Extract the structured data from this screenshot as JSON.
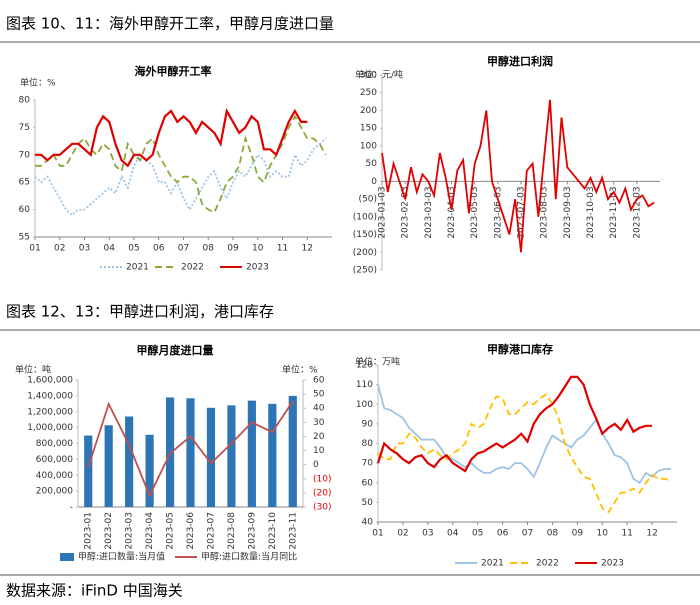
{
  "captions": [
    "图表 10、11：海外甲醇开工率，甲醇月度进口量",
    "图表 12、13：甲醇进口利润，港口库存"
  ],
  "source": "数据来源：iFinD  中国海关",
  "chart_data": [
    {
      "type": "line",
      "title": "海外甲醇开工率",
      "ylabel": "单位：%",
      "ylim": [
        55,
        80
      ],
      "yticks": [
        55,
        60,
        65,
        70,
        75,
        80
      ],
      "xlim": [
        1,
        13
      ],
      "xticks": [
        {
          "value": 1,
          "label": "01"
        },
        {
          "value": 2,
          "label": "02"
        },
        {
          "value": 3,
          "label": "03"
        },
        {
          "value": 4,
          "label": "04"
        },
        {
          "value": 5,
          "label": "05"
        },
        {
          "value": 6,
          "label": "06"
        },
        {
          "value": 7,
          "label": "07"
        },
        {
          "value": 8,
          "label": "08"
        },
        {
          "value": 9,
          "label": "09"
        },
        {
          "value": 10,
          "label": "10"
        },
        {
          "value": 11,
          "label": "11"
        },
        {
          "value": 12,
          "label": "12"
        }
      ],
      "x": [
        1,
        1.25,
        1.5,
        1.75,
        2,
        2.25,
        2.5,
        2.75,
        3,
        3.25,
        3.5,
        3.75,
        4,
        4.25,
        4.5,
        4.75,
        5,
        5.25,
        5.5,
        5.75,
        6,
        6.25,
        6.5,
        6.75,
        7,
        7.25,
        7.5,
        7.75,
        8,
        8.25,
        8.5,
        8.75,
        9,
        9.25,
        9.5,
        9.75,
        10,
        10.25,
        10.5,
        10.75,
        11,
        11.25,
        11.5,
        11.75,
        12,
        12.25,
        12.5,
        12.75
      ],
      "series": [
        {
          "name": "2021",
          "color": "#9dc3e6",
          "style": "dotted",
          "values": [
            66,
            65,
            66,
            64,
            62,
            60,
            59,
            60,
            60,
            61,
            62,
            63,
            64,
            63,
            66,
            64,
            68,
            70,
            69,
            68,
            65,
            65,
            63,
            65,
            62,
            60,
            62,
            64,
            66,
            67,
            64,
            62,
            65,
            67,
            66,
            68,
            70,
            69,
            66,
            67,
            66,
            66,
            70,
            68,
            69,
            71,
            72,
            73
          ]
        },
        {
          "name": "2022",
          "color": "#8aa83a",
          "style": "dashed",
          "values": [
            68,
            68,
            69,
            70,
            68,
            68,
            70,
            72,
            73,
            71,
            70,
            72,
            71,
            68,
            67,
            72,
            70,
            69,
            72,
            73,
            70,
            68,
            66,
            65,
            66,
            66,
            65,
            61,
            60,
            59.5,
            62,
            65,
            66,
            68,
            73,
            70,
            66,
            65,
            68,
            70,
            72,
            75,
            77,
            75,
            73,
            73,
            72,
            70
          ]
        },
        {
          "name": "2023",
          "color": "#e00000",
          "style": "solid",
          "values": [
            70,
            70,
            69,
            70,
            70,
            71,
            72,
            72,
            71,
            70,
            75,
            77,
            76,
            72,
            69,
            68,
            70,
            70,
            69,
            70,
            74,
            77,
            78,
            76,
            77,
            76,
            74,
            76,
            75,
            74,
            72,
            78,
            76,
            74,
            75,
            77,
            76,
            71,
            71,
            70,
            73,
            76,
            78,
            76,
            76,
            null,
            null,
            null
          ]
        }
      ]
    },
    {
      "type": "line",
      "title": "甲醇进口利润",
      "ylabel": "单位：元/吨",
      "ylim": [
        -250,
        300
      ],
      "yticks": [
        {
          "value": -250,
          "label": "(250)"
        },
        {
          "value": -200,
          "label": "(200)"
        },
        {
          "value": -150,
          "label": "(150)"
        },
        {
          "value": -100,
          "label": "(100)"
        },
        {
          "value": -50,
          "label": "(50)"
        },
        0,
        50,
        100,
        150,
        200,
        250,
        300
      ],
      "xlim": [
        0,
        12
      ],
      "xticks": [
        {
          "value": 0,
          "label": "2023-01-03"
        },
        {
          "value": 1,
          "label": "2023-02-03"
        },
        {
          "value": 2,
          "label": "2023-03-03"
        },
        {
          "value": 3,
          "label": "2023-04-03"
        },
        {
          "value": 4,
          "label": "2023-05-03"
        },
        {
          "value": 5,
          "label": "2023-06-03"
        },
        {
          "value": 6,
          "label": "2023-07-03"
        },
        {
          "value": 7,
          "label": "2023-08-03"
        },
        {
          "value": 8,
          "label": "2023-09-03"
        },
        {
          "value": 9,
          "label": "2023-10-03"
        },
        {
          "value": 10,
          "label": "2023-11-03"
        },
        {
          "value": 11,
          "label": "2023-12-03"
        }
      ],
      "x": [
        0,
        0.25,
        0.5,
        0.75,
        1,
        1.25,
        1.5,
        1.75,
        2,
        2.25,
        2.5,
        2.75,
        3,
        3.25,
        3.5,
        3.75,
        4,
        4.25,
        4.5,
        4.75,
        5,
        5.25,
        5.5,
        5.75,
        6,
        6.25,
        6.5,
        6.75,
        7,
        7.25,
        7.5,
        7.75,
        8,
        8.25,
        8.5,
        8.75,
        9,
        9.25,
        9.5,
        9.75,
        10,
        10.25,
        10.5,
        10.75,
        11,
        11.25,
        11.5,
        11.75
      ],
      "color": "#e00000",
      "values": [
        80,
        -30,
        50,
        0,
        -50,
        40,
        -30,
        20,
        0,
        -40,
        80,
        10,
        -80,
        30,
        60,
        -90,
        50,
        100,
        200,
        0,
        -50,
        -100,
        -150,
        -50,
        -200,
        30,
        50,
        -100,
        70,
        230,
        -50,
        180,
        40,
        20,
        0,
        -20,
        10,
        -30,
        10,
        -50,
        -30,
        -60,
        -20,
        -80,
        -50,
        -40,
        -70,
        -60
      ]
    },
    {
      "type": "bar",
      "title": "甲醇月度进口量",
      "ylabel": "单位：吨",
      "y2label": "单位：%",
      "categories": [
        "2023-01",
        "2023-02",
        "2023-03",
        "2023-04",
        "2023-05",
        "2023-06",
        "2023-07",
        "2023-08",
        "2023-09",
        "2023-10",
        "2023-11"
      ],
      "ylim": [
        0,
        1600000
      ],
      "yticks": [
        {
          "value": 0,
          "label": "-"
        },
        {
          "value": 200000,
          "label": "200,000"
        },
        {
          "value": 400000,
          "label": "400,000"
        },
        {
          "value": 600000,
          "label": "600,000"
        },
        {
          "value": 800000,
          "label": "800,000"
        },
        {
          "value": 1000000,
          "label": "1,000,000"
        },
        {
          "value": 1200000,
          "label": "1,200,000"
        },
        {
          "value": 1400000,
          "label": "1,400,000"
        },
        {
          "value": 1600000,
          "label": "1,600,000"
        }
      ],
      "y2lim": [
        -30,
        60
      ],
      "y2ticks": [
        {
          "value": -30,
          "label": "(30)"
        },
        {
          "value": -20,
          "label": "(20)"
        },
        {
          "value": -10,
          "label": "(10)"
        },
        0,
        10,
        20,
        30,
        40,
        50,
        60
      ],
      "series": [
        {
          "name": "甲醇:进口数量:当月值",
          "type": "bar",
          "color": "#2e75b6",
          "values": [
            900000,
            1030000,
            1140000,
            910000,
            1380000,
            1370000,
            1250000,
            1280000,
            1340000,
            1300000,
            1400000
          ]
        },
        {
          "name": "甲醇:进口数量:当月同比",
          "type": "line",
          "axis": "y2",
          "color": "#c0504d",
          "style": "solid",
          "values": [
            -2,
            43,
            14,
            -22,
            8,
            20,
            1,
            15,
            30,
            23,
            45
          ]
        }
      ]
    },
    {
      "type": "line",
      "title": "甲醇港口库存",
      "ylabel": "单位：万吨",
      "ylim": [
        40,
        120
      ],
      "yticks": [
        40,
        50,
        60,
        70,
        80,
        90,
        100,
        110,
        120
      ],
      "xlim": [
        1,
        13
      ],
      "xticks": [
        {
          "value": 1,
          "label": "01"
        },
        {
          "value": 2,
          "label": "02"
        },
        {
          "value": 3,
          "label": "03"
        },
        {
          "value": 4,
          "label": "04"
        },
        {
          "value": 5,
          "label": "05"
        },
        {
          "value": 6,
          "label": "06"
        },
        {
          "value": 7,
          "label": "07"
        },
        {
          "value": 8,
          "label": "08"
        },
        {
          "value": 9,
          "label": "09"
        },
        {
          "value": 10,
          "label": "10"
        },
        {
          "value": 11,
          "label": "11"
        },
        {
          "value": 12,
          "label": "12"
        }
      ],
      "x": [
        1,
        1.25,
        1.5,
        1.75,
        2,
        2.25,
        2.5,
        2.75,
        3,
        3.25,
        3.5,
        3.75,
        4,
        4.25,
        4.5,
        4.75,
        5,
        5.25,
        5.5,
        5.75,
        6,
        6.25,
        6.5,
        6.75,
        7,
        7.25,
        7.5,
        7.75,
        8,
        8.25,
        8.5,
        8.75,
        9,
        9.25,
        9.5,
        9.75,
        10,
        10.25,
        10.5,
        10.75,
        11,
        11.25,
        11.5,
        11.75,
        12,
        12.25,
        12.5,
        12.75
      ],
      "series": [
        {
          "name": "2021",
          "color": "#9dc3e6",
          "style": "solid",
          "values": [
            110,
            98,
            97,
            95,
            93,
            88,
            85,
            82,
            82,
            82,
            78,
            73,
            72,
            70,
            68,
            70,
            67,
            65,
            65,
            67,
            68,
            67,
            70,
            70,
            67,
            63,
            70,
            78,
            84,
            82,
            80,
            78,
            82,
            84,
            88,
            92,
            85,
            80,
            74,
            73,
            70,
            62,
            60,
            65,
            63,
            66,
            67,
            67
          ]
        },
        {
          "name": "2022",
          "color": "#ffc000",
          "style": "dashed",
          "values": [
            75,
            72,
            72,
            80,
            80,
            85,
            83,
            78,
            75,
            77,
            74,
            72,
            75,
            77,
            80,
            90,
            88,
            90,
            98,
            104,
            103,
            95,
            95,
            98,
            101,
            100,
            103,
            105,
            100,
            93,
            80,
            73,
            68,
            63,
            62,
            55,
            47,
            45,
            50,
            55,
            55,
            57,
            55,
            60,
            64,
            62,
            62,
            61
          ]
        },
        {
          "name": "2023",
          "color": "#e00000",
          "style": "solid",
          "values": [
            70,
            80,
            77,
            75,
            72,
            70,
            73,
            74,
            70,
            68,
            72,
            74,
            70,
            68,
            66,
            72,
            75,
            76,
            78,
            80,
            78,
            80,
            82,
            85,
            81,
            90,
            95,
            98,
            100,
            104,
            109,
            114,
            114,
            110,
            100,
            93,
            85,
            88,
            90,
            87,
            92,
            86,
            88,
            89,
            89,
            null,
            null,
            null
          ]
        }
      ]
    }
  ]
}
